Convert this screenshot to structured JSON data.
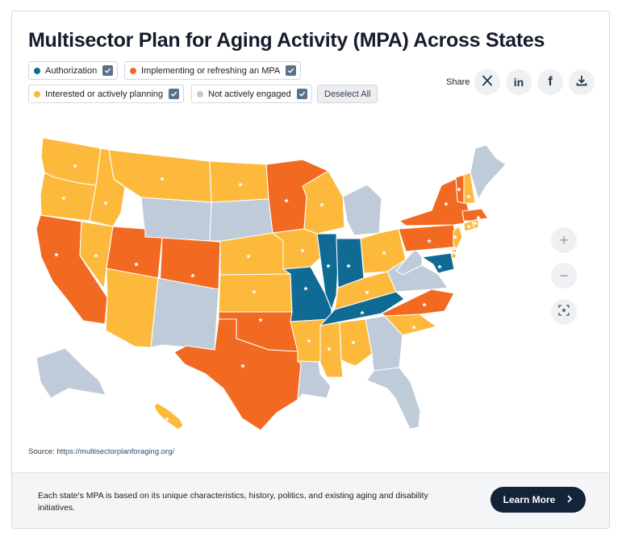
{
  "title": "Multisector Plan for Aging Activity (MPA) Across States",
  "legend": {
    "items": [
      {
        "label": "Authorization",
        "color": "#0f6b93",
        "checked": true
      },
      {
        "label": "Implementing or refreshing an MPA",
        "color": "#f26a21",
        "checked": true
      },
      {
        "label": "Interested or actively planning",
        "color": "#fdb93b",
        "checked": true
      },
      {
        "label": "Not actively engaged",
        "color": "#bfcbd9",
        "checked": true
      }
    ],
    "deselect_label": "Deselect All"
  },
  "share": {
    "label": "Share",
    "buttons": [
      "x-icon",
      "linkedin-icon",
      "facebook-icon",
      "download-icon"
    ],
    "linkedin_text": "in",
    "facebook_text": "f"
  },
  "zoom": {
    "in": "+",
    "out": "−"
  },
  "map_colors": {
    "authorization": "#0f6b93",
    "implementing": "#f26a21",
    "interested": "#fdb93b",
    "not_engaged": "#bfcbd9"
  },
  "states": {
    "WA": "interested",
    "OR": "interested",
    "ID": "interested",
    "MT": "interested",
    "ND": "interested",
    "MN": "implementing",
    "WI": "interested",
    "MI": "not_engaged",
    "CA": "implementing",
    "NV": "interested",
    "UT": "implementing",
    "WY": "not_engaged",
    "SD": "not_engaged",
    "NE": "interested",
    "IA": "interested",
    "IL": "authorization",
    "IN": "authorization",
    "OH": "interested",
    "AZ": "interested",
    "NM": "not_engaged",
    "CO": "implementing",
    "KS": "interested",
    "MO": "authorization",
    "KY": "interested",
    "WV": "not_engaged",
    "VA": "not_engaged",
    "PA": "implementing",
    "NY": "implementing",
    "OK": "implementing",
    "AR": "interested",
    "TN": "authorization",
    "NC": "implementing",
    "SC": "interested",
    "TX": "implementing",
    "LA": "not_engaged",
    "MS": "interested",
    "AL": "interested",
    "GA": "not_engaged",
    "FL": "not_engaged",
    "ME": "not_engaged",
    "VT": "implementing",
    "NH": "interested",
    "MA": "implementing",
    "RI": "interested",
    "CT": "interested",
    "NJ": "interested",
    "DE": "interested",
    "MD": "authorization",
    "AK": "not_engaged",
    "HI": "interested"
  },
  "source": {
    "label": "Source:",
    "link_text": "https://multisectorplanforaging.org/"
  },
  "footer": {
    "text": "Each state's MPA is based on its unique characteristics, history, politics, and existing aging and disability initiatives.",
    "button_label": "Learn More"
  }
}
